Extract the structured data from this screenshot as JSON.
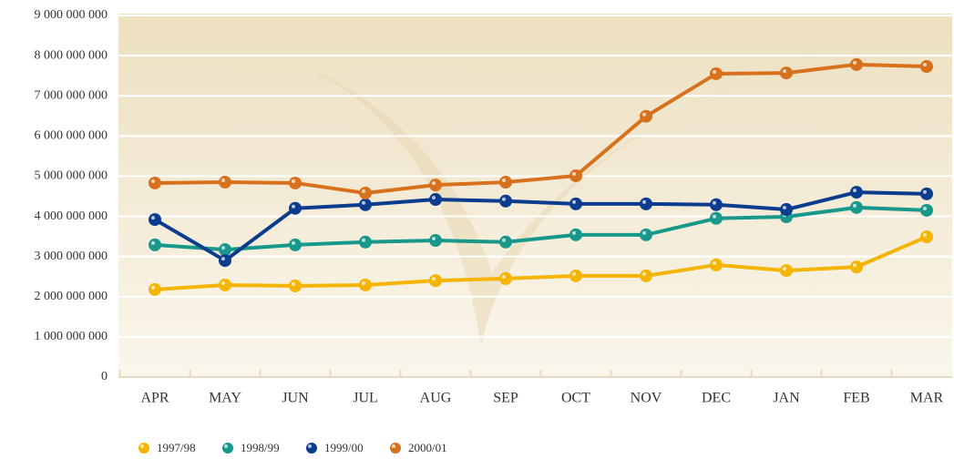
{
  "chart_data": {
    "type": "line",
    "categories": [
      "APR",
      "MAY",
      "JUN",
      "JUL",
      "AUG",
      "SEP",
      "OCT",
      "NOV",
      "DEC",
      "JAN",
      "FEB",
      "MAR"
    ],
    "series": [
      {
        "name": "1997/98",
        "color": "#f4b400",
        "values": [
          2180000000,
          2290000000,
          2270000000,
          2290000000,
          2400000000,
          2450000000,
          2520000000,
          2520000000,
          2790000000,
          2650000000,
          2740000000,
          3490000000
        ]
      },
      {
        "name": "1998/99",
        "color": "#17988b",
        "values": [
          3290000000,
          3170000000,
          3290000000,
          3360000000,
          3400000000,
          3360000000,
          3540000000,
          3540000000,
          3950000000,
          3990000000,
          4220000000,
          4150000000
        ]
      },
      {
        "name": "1999/00",
        "color": "#0b3c8e",
        "values": [
          3920000000,
          2900000000,
          4200000000,
          4290000000,
          4420000000,
          4380000000,
          4310000000,
          4310000000,
          4290000000,
          4170000000,
          4600000000,
          4560000000
        ]
      },
      {
        "name": "2000/01",
        "color": "#d8711d",
        "values": [
          4830000000,
          4850000000,
          4830000000,
          4580000000,
          4780000000,
          4850000000,
          5010000000,
          6490000000,
          7550000000,
          7570000000,
          7780000000,
          7730000000
        ]
      }
    ],
    "ylim": [
      0,
      9000000000
    ],
    "yticks": [
      0,
      {
        "value": 1000000000,
        "label": "1 000 000 000"
      },
      {
        "value": 2000000000,
        "label": "2 000 000 000"
      },
      {
        "value": 3000000000,
        "label": "3 000 000 000"
      },
      {
        "value": 4000000000,
        "label": "4 000 000 000"
      },
      {
        "value": 5000000000,
        "label": "5 000 000 000"
      },
      {
        "value": 6000000000,
        "label": "6 000 000 000"
      },
      {
        "value": 7000000000,
        "label": "7 000 000 000"
      },
      {
        "value": 8000000000,
        "label": "8 000 000 000"
      },
      {
        "value": 9000000000,
        "label": "9 000 000 000"
      }
    ],
    "grid": true,
    "legend": "bottom"
  }
}
